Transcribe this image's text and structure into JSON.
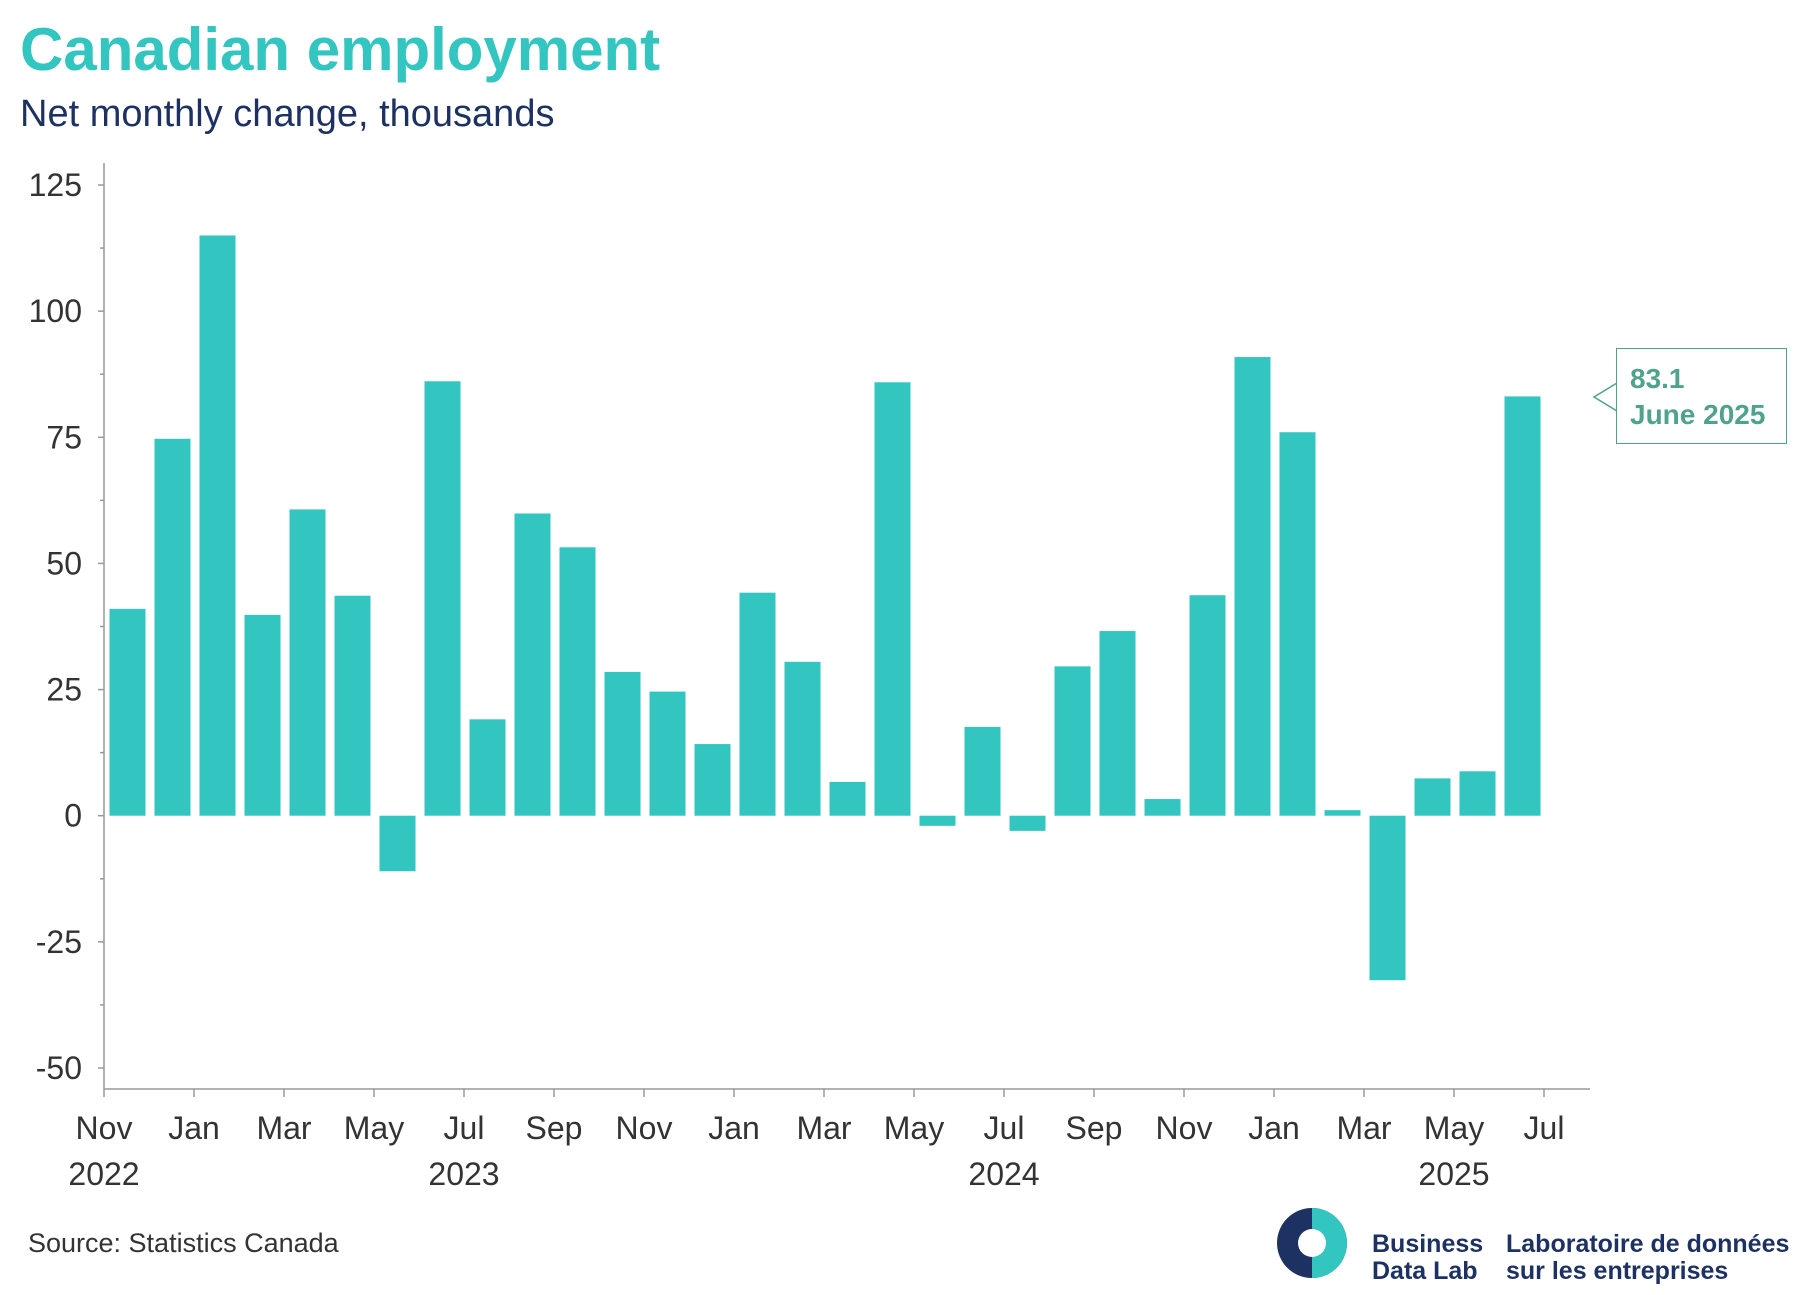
{
  "chart_data": {
    "type": "bar",
    "title": "Canadian employment",
    "subtitle": "Net monthly change, thousands",
    "xlabel": "",
    "ylabel": "",
    "ylim": [
      -50,
      125
    ],
    "yticks": [
      -50,
      -25,
      0,
      25,
      50,
      75,
      100,
      125
    ],
    "ytick_labels": [
      "-50",
      "-25",
      "0",
      "25",
      "50",
      "75",
      "100",
      "125"
    ],
    "categories": [
      "2022-11",
      "2022-12",
      "2023-01",
      "2023-02",
      "2023-03",
      "2023-04",
      "2023-05",
      "2023-06",
      "2023-07",
      "2023-08",
      "2023-09",
      "2023-10",
      "2023-11",
      "2023-12",
      "2024-01",
      "2024-02",
      "2024-03",
      "2024-04",
      "2024-05",
      "2024-06",
      "2024-07",
      "2024-08",
      "2024-09",
      "2024-10",
      "2024-11",
      "2024-12",
      "2025-01",
      "2025-02",
      "2025-03",
      "2025-04",
      "2025-05",
      "2025-06"
    ],
    "values": [
      41,
      74.7,
      115,
      39.8,
      60.7,
      43.6,
      -11,
      86.1,
      19.1,
      59.9,
      53.2,
      28.5,
      24.6,
      14.2,
      44.2,
      30.5,
      6.7,
      85.9,
      -2,
      17.6,
      -3,
      29.6,
      36.6,
      3.3,
      43.7,
      90.9,
      76,
      1.1,
      -32.6,
      7.4,
      8.8,
      83.1
    ],
    "x_tick_labels": [
      {
        "month": "Nov",
        "year": "2022"
      },
      {
        "month": "Jan",
        "year": ""
      },
      {
        "month": "Mar",
        "year": ""
      },
      {
        "month": "May",
        "year": ""
      },
      {
        "month": "Jul",
        "year": "2023"
      },
      {
        "month": "Sep",
        "year": ""
      },
      {
        "month": "Nov",
        "year": ""
      },
      {
        "month": "Jan",
        "year": ""
      },
      {
        "month": "Mar",
        "year": ""
      },
      {
        "month": "May",
        "year": ""
      },
      {
        "month": "Jul",
        "year": "2024"
      },
      {
        "month": "Sep",
        "year": ""
      },
      {
        "month": "Nov",
        "year": ""
      },
      {
        "month": "Jan",
        "year": ""
      },
      {
        "month": "Mar",
        "year": ""
      },
      {
        "month": "May",
        "year": "2025"
      },
      {
        "month": "Jul",
        "year": ""
      }
    ],
    "annotation": {
      "value_label": "83.1",
      "date_label": "June 2025",
      "category": "2025-06"
    },
    "bar_color": "#33c5c0",
    "grid": false,
    "legend": "none"
  },
  "source": "Source: Statistics Canada",
  "brand": {
    "line1_en": "Business",
    "line2_en": "Data Lab",
    "line1_fr": "Laboratoire de données",
    "line2_fr": "sur les entreprises",
    "colors": {
      "teal": "#33c5c0",
      "navy": "#1d3263",
      "annotation": "#4fa38d"
    }
  }
}
